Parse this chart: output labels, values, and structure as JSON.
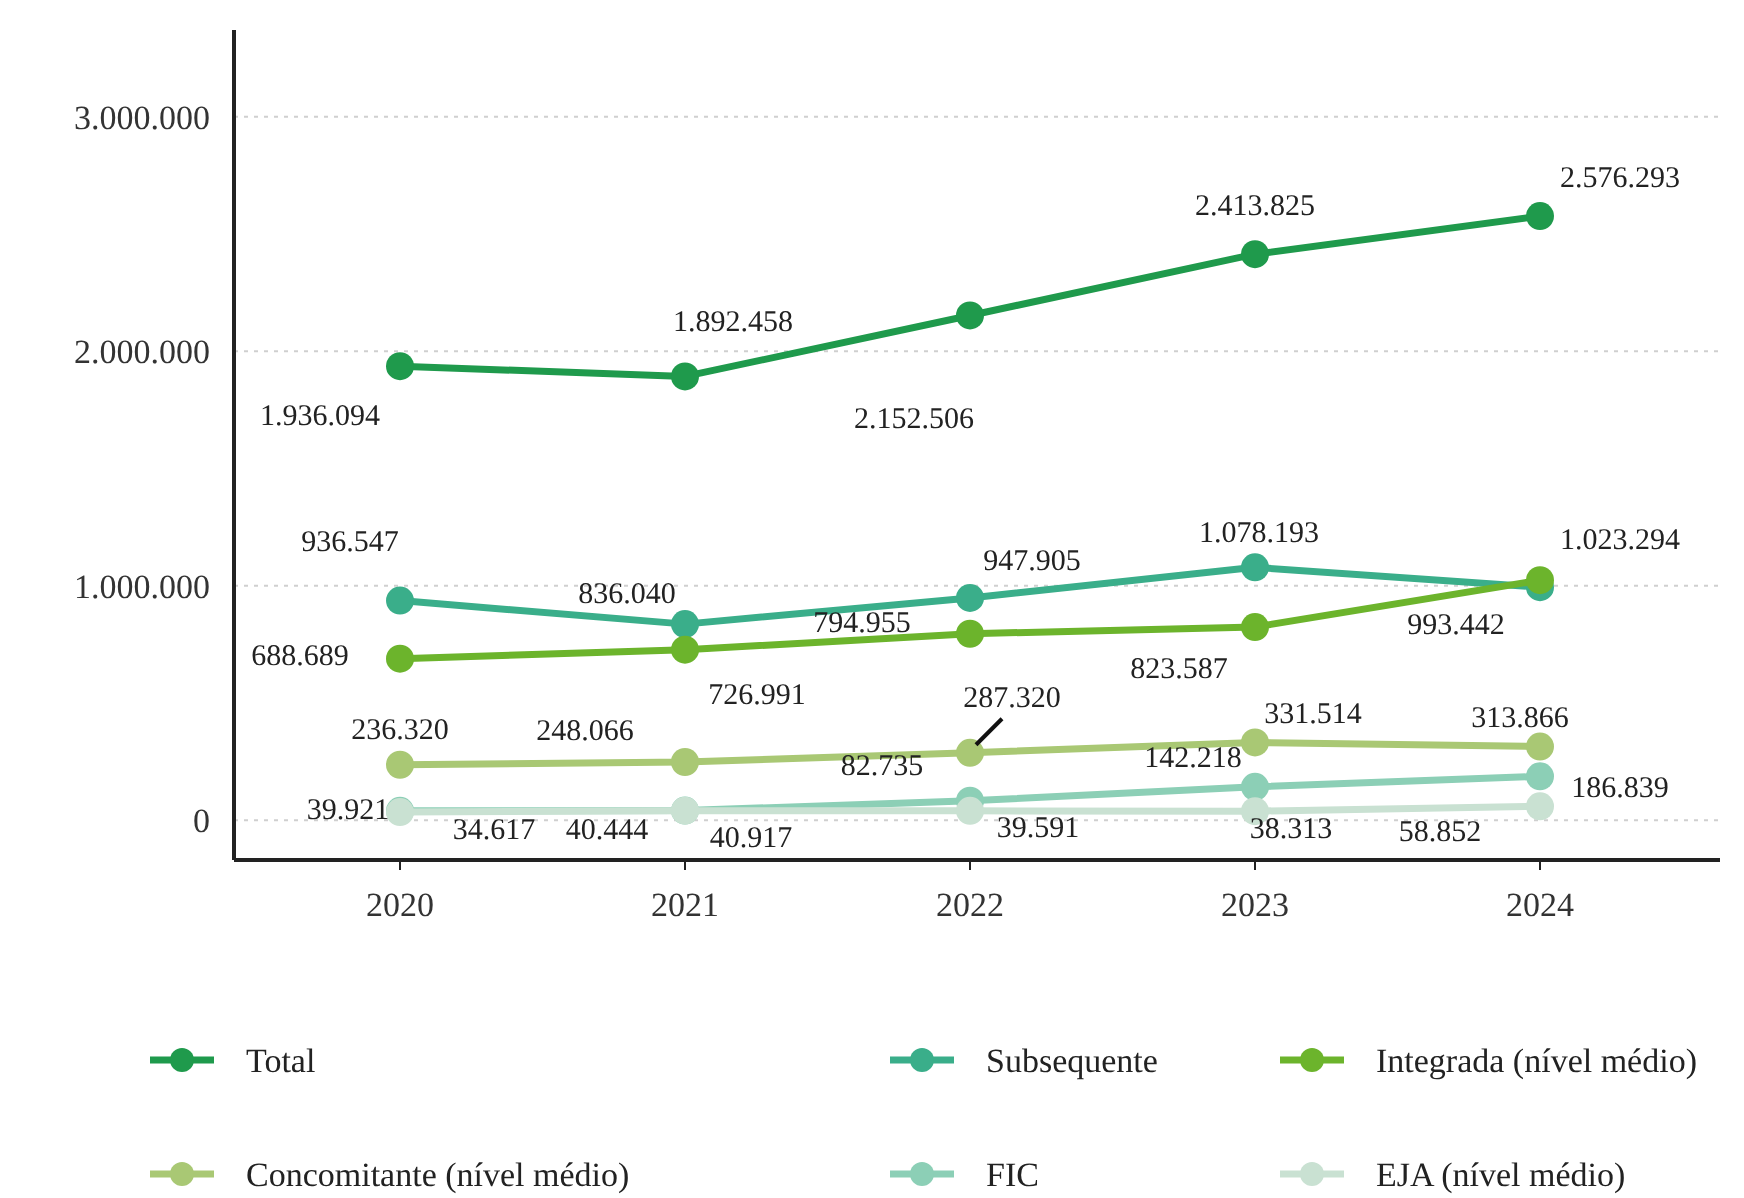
{
  "chart_data": {
    "type": "line",
    "categories": [
      "2020",
      "2021",
      "2022",
      "2023",
      "2024"
    ],
    "ylim": [
      -170000,
      3370000
    ],
    "yticks": [
      {
        "value": 0,
        "label": "0"
      },
      {
        "value": 1000000,
        "label": "1.000.000"
      },
      {
        "value": 2000000,
        "label": "2.000.000"
      },
      {
        "value": 3000000,
        "label": "3.000.000"
      }
    ],
    "grid": "y",
    "legend": "bottom",
    "marker": "circle",
    "line_style": "solid",
    "series": [
      {
        "name": "Total",
        "color": "#1f9a4c",
        "values": [
          1936094,
          1892458,
          2152506,
          2413825,
          2576293
        ],
        "value_labels": [
          "1.936.094",
          "1.892.458",
          "2.152.506",
          "2.413.825",
          "2.576.293"
        ]
      },
      {
        "name": "Subsequente",
        "color": "#3aae8a",
        "values": [
          936547,
          836040,
          947905,
          1078193,
          993442
        ],
        "value_labels": [
          "936.547",
          "836.040",
          "947.905",
          "1.078.193",
          "993.442"
        ]
      },
      {
        "name": "Integrada (nível médio)",
        "color": "#6cb42c",
        "values": [
          688689,
          726991,
          794955,
          823587,
          1023294
        ],
        "value_labels": [
          "688.689",
          "726.991",
          "794.955",
          "823.587",
          "1.023.294"
        ]
      },
      {
        "name": "Concomitante (nível médio)",
        "color": "#a9c874",
        "values": [
          236320,
          248066,
          287320,
          331514,
          313866
        ],
        "value_labels": [
          "236.320",
          "248.066",
          "287.320",
          "331.514",
          "313.866"
        ]
      },
      {
        "name": "FIC",
        "color": "#8ccfb6",
        "values": [
          39921,
          40917,
          82735,
          142218,
          186839
        ],
        "value_labels": [
          "39.921",
          "40.917",
          "82.735",
          "142.218",
          "186.839"
        ]
      },
      {
        "name": "EJA (nível médio)",
        "color": "#c9e1d2",
        "values": [
          34617,
          40444,
          39591,
          38313,
          58852
        ],
        "value_labels": [
          "34.617",
          "40.444",
          "39.591",
          "38.313",
          "58.852"
        ]
      }
    ]
  }
}
